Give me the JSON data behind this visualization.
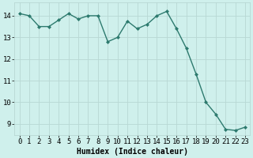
{
  "x": [
    0,
    1,
    2,
    3,
    4,
    5,
    6,
    7,
    8,
    9,
    10,
    11,
    12,
    13,
    14,
    15,
    16,
    17,
    18,
    19,
    20,
    21,
    22,
    23
  ],
  "y": [
    14.1,
    14.0,
    13.5,
    13.5,
    13.8,
    14.1,
    13.85,
    14.0,
    14.0,
    12.8,
    13.0,
    13.75,
    13.4,
    13.6,
    14.0,
    14.2,
    13.4,
    12.5,
    11.3,
    10.0,
    9.45,
    8.75,
    8.7,
    8.85
  ],
  "line_color": "#2d7a6e",
  "marker": "D",
  "markersize": 2,
  "linewidth": 1.0,
  "background_color": "#cff0ec",
  "grid_color_major": "#b8d8d4",
  "grid_color_minor": "#cce8e4",
  "xlabel": "Humidex (Indice chaleur)",
  "xlabel_fontsize": 7,
  "tick_fontsize": 6.5,
  "ylim": [
    8.5,
    14.6
  ],
  "xlim": [
    -0.5,
    23.5
  ],
  "yticks": [
    9,
    10,
    11,
    12,
    13,
    14
  ],
  "xticks": [
    0,
    1,
    2,
    3,
    4,
    5,
    6,
    7,
    8,
    9,
    10,
    11,
    12,
    13,
    14,
    15,
    16,
    17,
    18,
    19,
    20,
    21,
    22,
    23
  ]
}
